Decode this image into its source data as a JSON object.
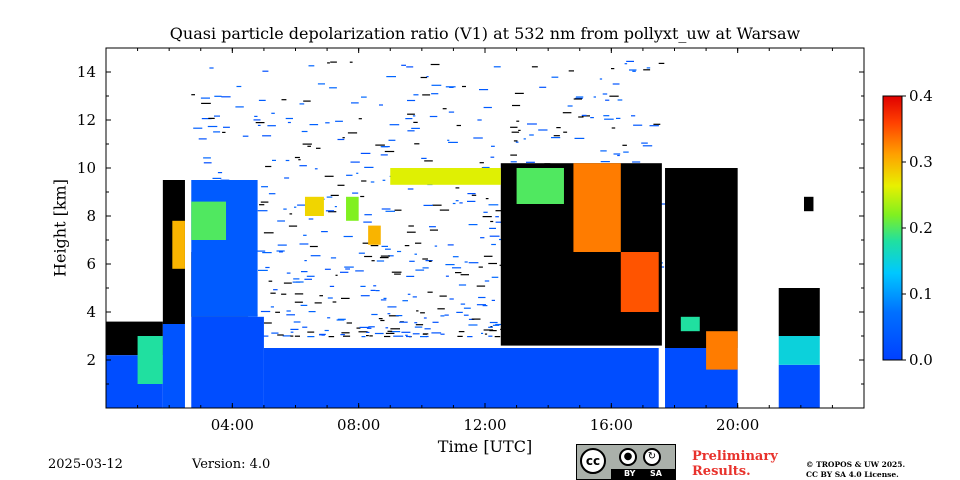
{
  "chart_data": {
    "type": "heatmap",
    "title": "Quasi particle depolarization ratio (V1) at 532 nm from pollyxt_uw at Warsaw",
    "xlabel": "Time [UTC]",
    "ylabel": "Height [km]",
    "x_range_hours": [
      0,
      24
    ],
    "y_range_km": [
      0,
      15
    ],
    "x_ticks": [
      {
        "hour": 4,
        "label": "04:00"
      },
      {
        "hour": 8,
        "label": "08:00"
      },
      {
        "hour": 12,
        "label": "12:00"
      },
      {
        "hour": 16,
        "label": "16:00"
      },
      {
        "hour": 20,
        "label": "20:00"
      }
    ],
    "y_ticks": [
      {
        "value": 2,
        "label": "2"
      },
      {
        "value": 4,
        "label": "4"
      },
      {
        "value": 6,
        "label": "6"
      },
      {
        "value": 8,
        "label": "8"
      },
      {
        "value": 10,
        "label": "10"
      },
      {
        "value": 12,
        "label": "12"
      },
      {
        "value": 14,
        "label": "14"
      }
    ],
    "colorbar": {
      "range": [
        0,
        0.4
      ],
      "ticks": [
        {
          "value": 0.0,
          "label": "0.0"
        },
        {
          "value": 0.1,
          "label": "0.1"
        },
        {
          "value": 0.2,
          "label": "0.2"
        },
        {
          "value": 0.3,
          "label": "0.3"
        },
        {
          "value": 0.4,
          "label": "0.4"
        }
      ],
      "colormap": "jet"
    },
    "regions": [
      {
        "t0": 0.0,
        "t1": 1.8,
        "h0": 0.0,
        "h1": 2.2,
        "value": 0.02
      },
      {
        "t0": 1.0,
        "t1": 1.8,
        "h0": 1.0,
        "h1": 3.0,
        "value": 0.18
      },
      {
        "t0": 1.8,
        "t1": 2.5,
        "h0": 0.0,
        "h1": 3.5,
        "value": 0.03
      },
      {
        "t0": 2.1,
        "t1": 2.5,
        "h0": 5.8,
        "h1": 7.8,
        "value": 0.3
      },
      {
        "t0": 2.7,
        "t1": 5.0,
        "h0": 0.0,
        "h1": 3.8,
        "value": 0.02
      },
      {
        "t0": 2.7,
        "t1": 4.8,
        "h0": 3.8,
        "h1": 9.5,
        "value": 0.04
      },
      {
        "t0": 2.7,
        "t1": 3.8,
        "h0": 7.0,
        "h1": 8.6,
        "value": 0.2
      },
      {
        "t0": 5.0,
        "t1": 17.5,
        "h0": 0.0,
        "h1": 2.5,
        "value": 0.02
      },
      {
        "t0": 6.3,
        "t1": 6.9,
        "h0": 8.0,
        "h1": 8.8,
        "value": 0.28
      },
      {
        "t0": 7.6,
        "t1": 8.0,
        "h0": 7.8,
        "h1": 8.8,
        "value": 0.22
      },
      {
        "t0": 8.3,
        "t1": 8.7,
        "h0": 6.8,
        "h1": 7.6,
        "value": 0.3
      },
      {
        "t0": 9.0,
        "t1": 12.5,
        "h0": 9.3,
        "h1": 10.0,
        "value": 0.26
      },
      {
        "t0": 13.0,
        "t1": 14.5,
        "h0": 8.5,
        "h1": 10.0,
        "value": 0.2
      },
      {
        "t0": 14.8,
        "t1": 16.3,
        "h0": 6.5,
        "h1": 10.2,
        "value": 0.33
      },
      {
        "t0": 16.3,
        "t1": 17.5,
        "h0": 4.0,
        "h1": 6.5,
        "value": 0.35
      },
      {
        "t0": 17.7,
        "t1": 20.0,
        "h0": 0.0,
        "h1": 2.5,
        "value": 0.02
      },
      {
        "t0": 18.2,
        "t1": 18.8,
        "h0": 3.2,
        "h1": 3.8,
        "value": 0.18
      },
      {
        "t0": 19.0,
        "t1": 20.0,
        "h0": 1.6,
        "h1": 3.2,
        "value": 0.33
      },
      {
        "t0": 21.3,
        "t1": 22.6,
        "h0": 0.0,
        "h1": 1.8,
        "value": 0.02
      },
      {
        "t0": 21.3,
        "t1": 22.6,
        "h0": 1.8,
        "h1": 3.0,
        "value": 0.15
      }
    ],
    "dark_regions": [
      {
        "t0": 0.0,
        "t1": 1.8,
        "h0": 2.2,
        "h1": 3.6
      },
      {
        "t0": 1.8,
        "t1": 2.5,
        "h0": 3.5,
        "h1": 9.5
      },
      {
        "t0": 2.7,
        "t1": 4.5,
        "h0": 3.8,
        "h1": 6.5
      },
      {
        "t0": 12.5,
        "t1": 17.6,
        "h0": 2.6,
        "h1": 10.2
      },
      {
        "t0": 17.7,
        "t1": 20.0,
        "h0": 2.5,
        "h1": 10.0
      },
      {
        "t0": 21.3,
        "t1": 22.6,
        "h0": 3.0,
        "h1": 5.0
      },
      {
        "t0": 22.1,
        "t1": 22.4,
        "h0": 8.2,
        "h1": 8.8
      }
    ],
    "speckle_bands": [
      {
        "t0": 2.7,
        "t1": 17.5,
        "h0": 3.0,
        "h1": 14.5,
        "value": 0.02
      }
    ]
  },
  "footer": {
    "date": "2025-03-12",
    "version": "Version: 4.0",
    "cc_icon": "cc-icon",
    "cc_by": "BY",
    "cc_sa": "SA",
    "preliminary_line1": "Preliminary",
    "preliminary_line2": "Results.",
    "license_line1": "© TROPOS & UW 2025.",
    "license_line2": "CC BY SA 4.0 License."
  }
}
